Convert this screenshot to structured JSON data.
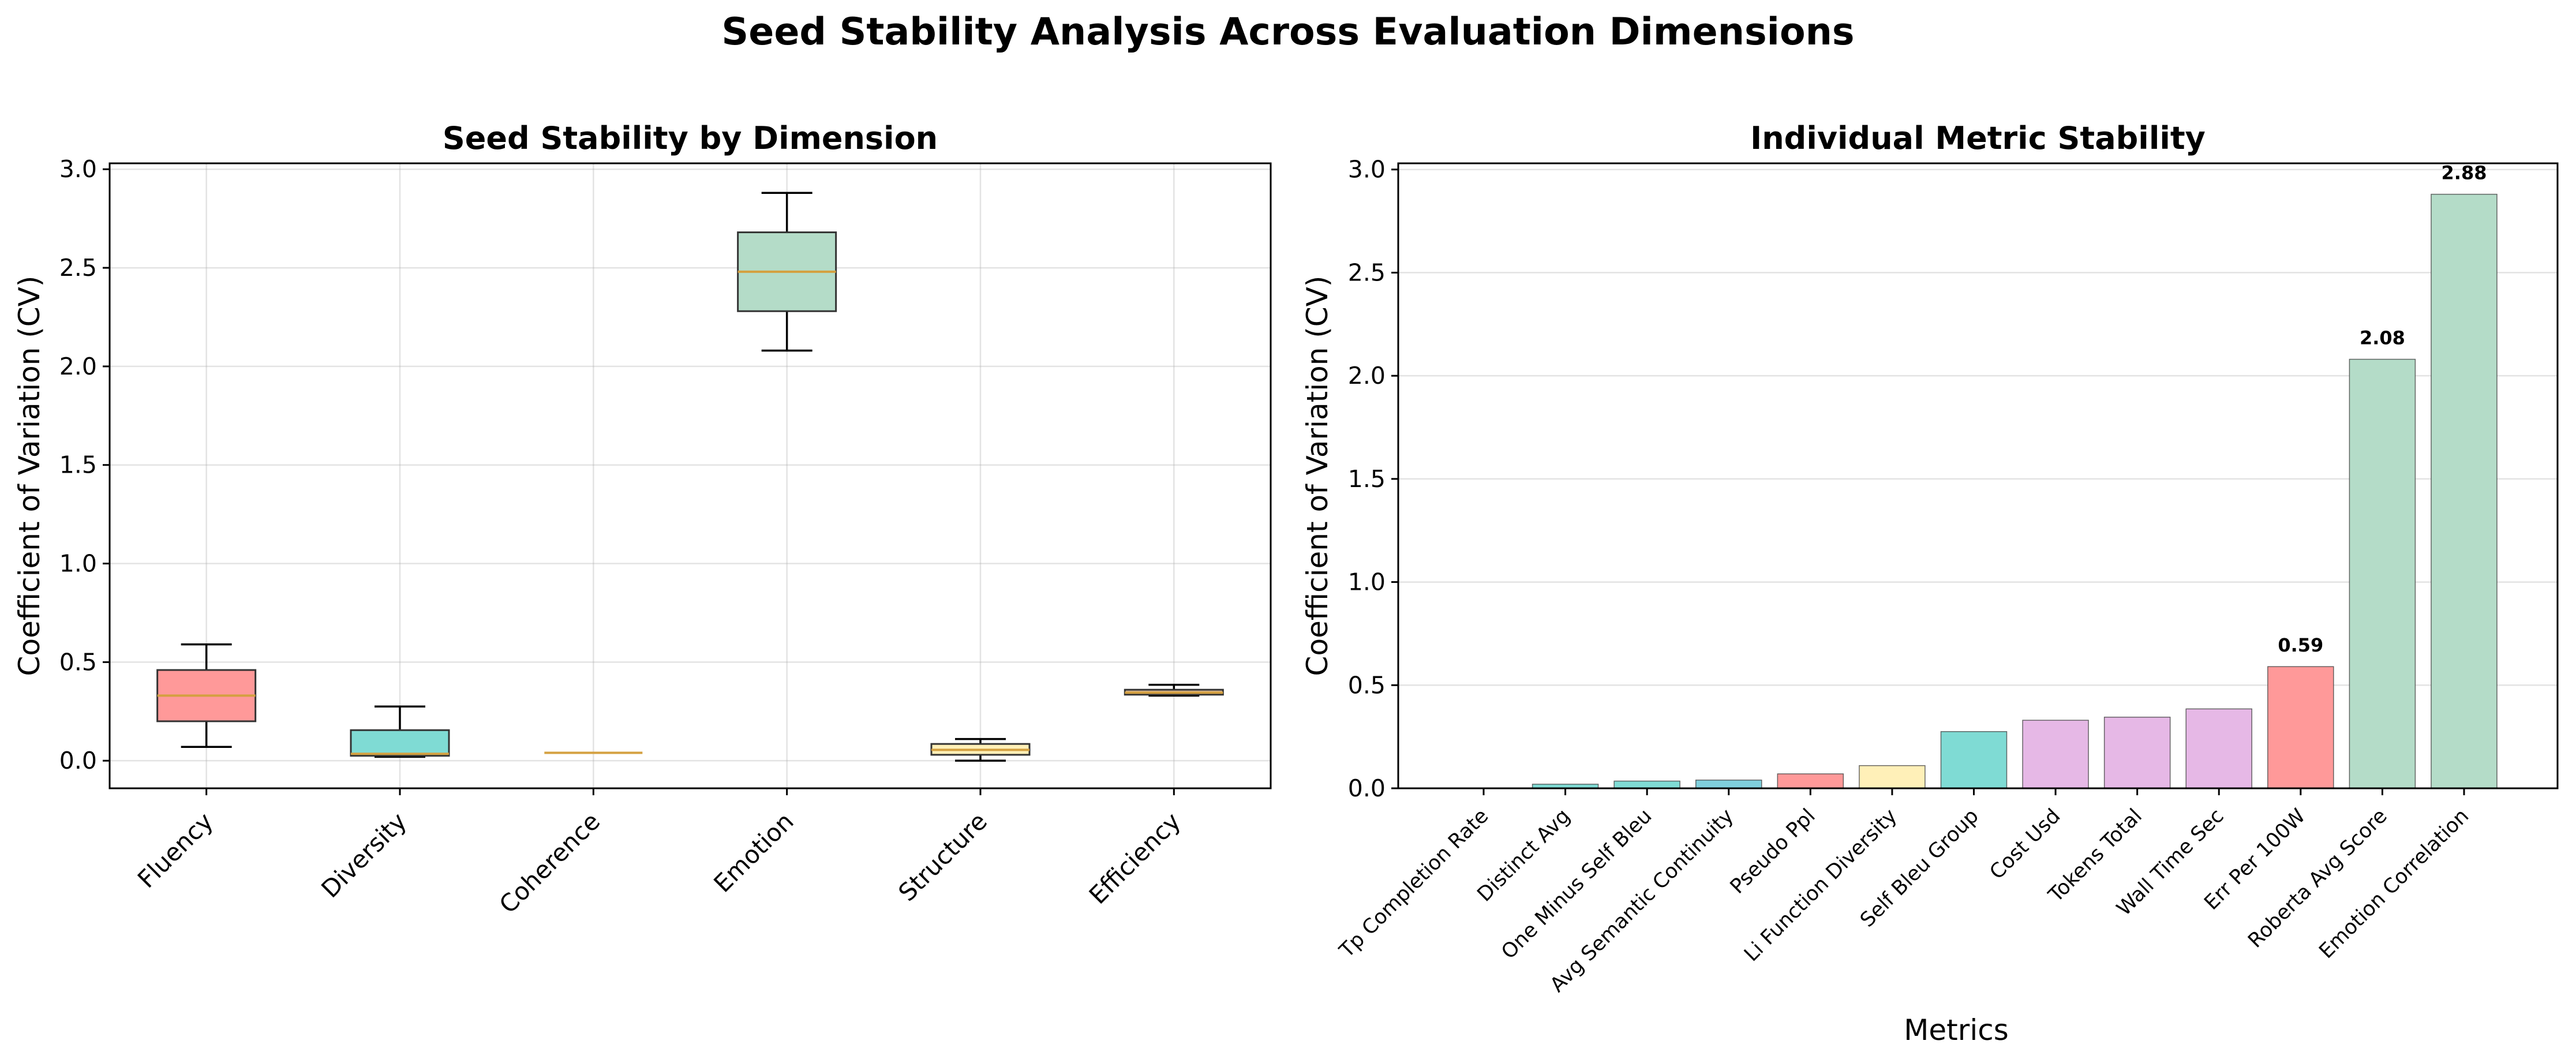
{
  "figure": {
    "title": "Seed Stability Analysis Across Evaluation Dimensions"
  },
  "chart_data": [
    {
      "type": "box",
      "title": "Seed Stability by Dimension",
      "xlabel": "",
      "ylabel": "Coefficient of Variation (CV)",
      "ylim": [
        -0.14,
        3.03
      ],
      "yticks": [
        0.0,
        0.5,
        1.0,
        1.5,
        2.0,
        2.5,
        3.0
      ],
      "grid": true,
      "categories": [
        "Fluency",
        "Diversity",
        "Coherence",
        "Emotion",
        "Structure",
        "Efficiency"
      ],
      "boxes": [
        {
          "category": "Fluency",
          "whisker_low": 0.07,
          "q1": 0.2,
          "median": 0.33,
          "q3": 0.46,
          "whisker_high": 0.59,
          "color": "#FF9999"
        },
        {
          "category": "Diversity",
          "whisker_low": 0.02,
          "q1": 0.025,
          "median": 0.035,
          "q3": 0.155,
          "whisker_high": 0.275,
          "color": "#7FDBD4"
        },
        {
          "category": "Coherence",
          "whisker_low": 0.04,
          "q1": 0.04,
          "median": 0.04,
          "q3": 0.04,
          "whisker_high": 0.04,
          "color": "#A8DCE8"
        },
        {
          "category": "Emotion",
          "whisker_low": 2.08,
          "q1": 2.28,
          "median": 2.48,
          "q3": 2.68,
          "whisker_high": 2.88,
          "color": "#B4DCC8"
        },
        {
          "category": "Structure",
          "whisker_low": 0.0,
          "q1": 0.03,
          "median": 0.055,
          "q3": 0.085,
          "whisker_high": 0.11,
          "color": "#FFF0B8"
        },
        {
          "category": "Efficiency",
          "whisker_low": 0.33,
          "q1": 0.335,
          "median": 0.345,
          "q3": 0.36,
          "whisker_high": 0.385,
          "color": "#D8B898"
        }
      ],
      "median_color": "#D4A040"
    },
    {
      "type": "bar",
      "title": "Individual Metric Stability",
      "xlabel": "Metrics",
      "ylabel": "Coefficient of Variation (CV)",
      "ylim": [
        0,
        3.03
      ],
      "yticks": [
        0.0,
        0.5,
        1.0,
        1.5,
        2.0,
        2.5,
        3.0
      ],
      "grid": true,
      "categories": [
        "Tp Completion Rate",
        "Distinct Avg",
        "One Minus Self Bleu",
        "Avg Semantic Continuity",
        "Pseudo Ppl",
        "Li Function Diversity",
        "Self Bleu Group",
        "Cost Usd",
        "Tokens Total",
        "Wall Time Sec",
        "Err Per 100W",
        "Roberta Avg Score",
        "Emotion Correlation"
      ],
      "values": [
        0.0,
        0.02,
        0.035,
        0.04,
        0.07,
        0.11,
        0.275,
        0.33,
        0.345,
        0.385,
        0.59,
        2.08,
        2.88
      ],
      "colors": [
        "#7FDBD4",
        "#7FDBD4",
        "#7FDBD4",
        "#7FCFDC",
        "#FF9999",
        "#FFF0B8",
        "#7FDBD4",
        "#E6B8E6",
        "#E6B8E6",
        "#E6B8E6",
        "#FF9999",
        "#B4DCC8",
        "#B4DCC8"
      ],
      "value_labels": [
        "",
        "",
        "",
        "",
        "",
        "",
        "",
        "",
        "",
        "",
        "0.59",
        "2.08",
        "2.88"
      ]
    }
  ]
}
